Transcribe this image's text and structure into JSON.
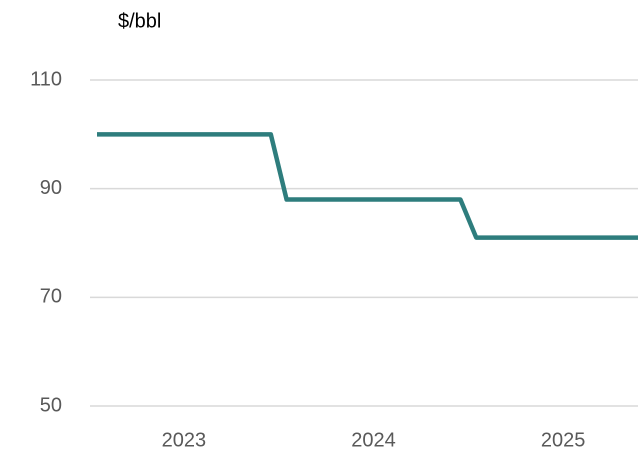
{
  "chart_data": {
    "type": "line",
    "title": "$/bbl",
    "categories": [
      null,
      null,
      null,
      null,
      null,
      null,
      "2023",
      null,
      null,
      null,
      null,
      null,
      null,
      null,
      null,
      null,
      null,
      null,
      "2024",
      null,
      null,
      null,
      null,
      null,
      null,
      null,
      null,
      null,
      null,
      null,
      "2025",
      null,
      null,
      null,
      null,
      null
    ],
    "series": [
      {
        "name": null,
        "color": "#2e7d7d",
        "values": [
          100,
          100,
          100,
          100,
          100,
          100,
          100,
          100,
          100,
          100,
          100,
          100,
          88,
          88,
          88,
          88,
          88,
          88,
          88,
          88,
          88,
          88,
          88,
          88,
          81,
          81,
          81,
          81,
          81,
          81,
          81,
          81,
          81,
          81,
          81,
          81
        ]
      }
    ],
    "ylim": [
      50,
      110
    ],
    "yticks": [
      50,
      70,
      90,
      110
    ],
    "grid": true
  }
}
